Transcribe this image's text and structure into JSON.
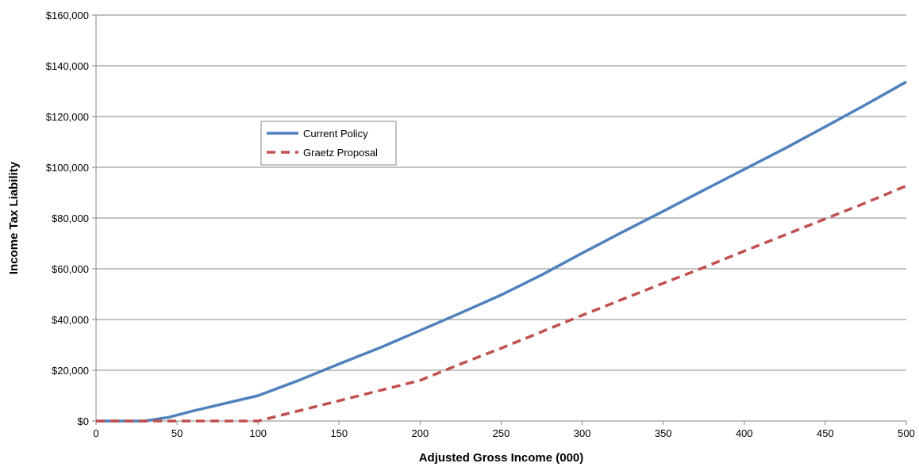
{
  "chart_data": {
    "type": "line",
    "title": "",
    "xlabel": "Adjusted Gross Income (000)",
    "ylabel": "Income Tax Liability",
    "xlim": [
      0,
      500
    ],
    "ylim": [
      0,
      160000
    ],
    "x_ticks": [
      0,
      50,
      100,
      150,
      200,
      250,
      300,
      350,
      400,
      450,
      500
    ],
    "x_tick_labels": [
      "0",
      "50",
      "100",
      "150",
      "200",
      "250",
      "300",
      "350",
      "400",
      "450",
      "500"
    ],
    "y_ticks": [
      0,
      20000,
      40000,
      60000,
      80000,
      100000,
      120000,
      140000,
      160000
    ],
    "y_tick_labels": [
      "$0",
      "$20,000",
      "$40,000",
      "$60,000",
      "$80,000",
      "$100,000",
      "$120,000",
      "$140,000",
      "$160,000"
    ],
    "grid": "horizontal",
    "legend_position": "upper-left inside plot",
    "series": [
      {
        "name": "Current Policy",
        "color": "#4f81bd",
        "style": "solid",
        "x": [
          0,
          30,
          45,
          60,
          80,
          100,
          125,
          150,
          175,
          200,
          225,
          250,
          275,
          300,
          325,
          350,
          375,
          400,
          425,
          450,
          475,
          500
        ],
        "y": [
          0,
          0,
          1500,
          4000,
          7000,
          10000,
          16000,
          22500,
          28800,
          35700,
          42600,
          49700,
          57600,
          66200,
          74500,
          82700,
          91000,
          99200,
          107400,
          116000,
          124700,
          133700
        ]
      },
      {
        "name": "Graetz Proposal",
        "color": "#c0504d",
        "style": "dashed",
        "x": [
          0,
          30,
          45,
          60,
          80,
          100,
          125,
          150,
          175,
          200,
          225,
          250,
          275,
          300,
          325,
          350,
          375,
          400,
          425,
          450,
          475,
          500
        ],
        "y": [
          0,
          0,
          0,
          0,
          0,
          0,
          4000,
          8000,
          12000,
          16000,
          22500,
          28700,
          35200,
          41700,
          48000,
          54300,
          60500,
          67000,
          73300,
          79700,
          86000,
          92700
        ]
      }
    ]
  }
}
